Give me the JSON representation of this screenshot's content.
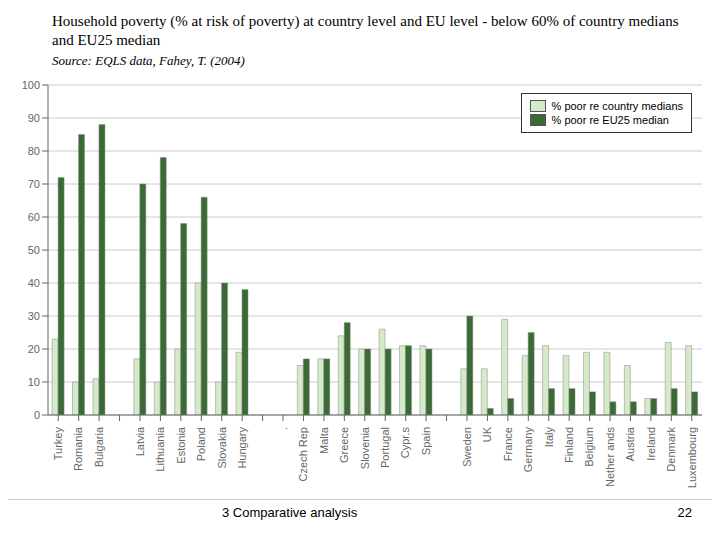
{
  "chart_data": {
    "type": "bar",
    "title": "Household poverty (% at risk of poverty) at country level and EU level - below 60% of country medians and EU25 median",
    "subtitle": "Source: EQLS data, Fahey, T. (2004)",
    "annotations": [
      "3 Comparative analysis",
      "22"
    ],
    "categories": [
      "Turkey",
      "Romania",
      "Bulgaria",
      null,
      "Latvia",
      "Lithuania",
      "Estonia",
      "Poland",
      "Slovakia",
      "Hungary",
      null,
      ".",
      "Czech Rep",
      "Malta",
      "Greece",
      "Slovenia",
      "Portugal",
      "Cypr.s",
      "Spain",
      null,
      "Sweden",
      "UK",
      "France",
      "Germany",
      "Italy",
      "Finland",
      "Belgium",
      "Nether ands",
      "Austria",
      "Ireland",
      "Denmark",
      "Luxembourg"
    ],
    "series": [
      {
        "name": "% poor re country medians",
        "color": "#d4eac8",
        "values": [
          23,
          10,
          11,
          0,
          17,
          10,
          20,
          40,
          10,
          19,
          0,
          0,
          15,
          17,
          24,
          20,
          26,
          21,
          21,
          0,
          14,
          14,
          29,
          18,
          21,
          18,
          19,
          19,
          15,
          5,
          22,
          21
        ]
      },
      {
        "name": "% poor re EU25 median",
        "color": "#3a6b35",
        "values": [
          72,
          85,
          88,
          0,
          70,
          78,
          58,
          66,
          40,
          38,
          0,
          0,
          17,
          17,
          28,
          20,
          20,
          21,
          20,
          0,
          30,
          2,
          5,
          25,
          8,
          8,
          7,
          4,
          4,
          5,
          8,
          7
        ]
      }
    ],
    "ylim": [
      0,
      100
    ],
    "yticks": [
      0,
      10,
      20,
      30,
      40,
      50,
      60,
      70,
      80,
      90,
      100
    ],
    "grid": true,
    "legend": "upper right"
  }
}
